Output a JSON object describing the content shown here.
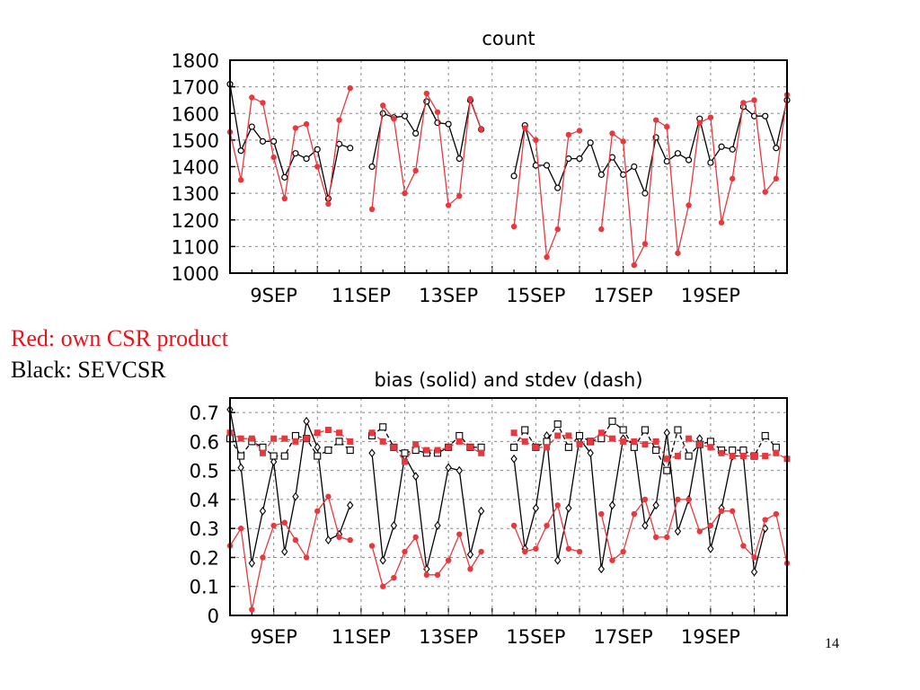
{
  "legend": {
    "red": "Red: own CSR product",
    "black": "Black: SEVCSR"
  },
  "slide_number": "14",
  "colors": {
    "red": "#e8383e",
    "black": "#000000"
  },
  "chart_data": [
    {
      "type": "line",
      "title": "count",
      "xlabel": "",
      "ylabel": "",
      "x_tick_labels": [
        "9SEP",
        "11SEP",
        "13SEP",
        "15SEP",
        "17SEP",
        "19SEP"
      ],
      "x_tick_days": [
        9,
        11,
        13,
        15,
        17,
        19
      ],
      "xlim": [
        8,
        20.75
      ],
      "ylim": [
        1000,
        1800
      ],
      "y_ticks": [
        1000,
        1100,
        1200,
        1300,
        1400,
        1500,
        1600,
        1700,
        1800
      ],
      "y_tick_labels": [
        "1000",
        "1100",
        "1200",
        "1300",
        "1400",
        "1500",
        "1600",
        "1700",
        "1800"
      ],
      "grid": "dashed",
      "series": [
        {
          "color": "black",
          "marker": "circle-open",
          "segments": [
            {
              "x": [
                8,
                8.25,
                8.5,
                8.75,
                9,
                9.25,
                9.5,
                9.75,
                10,
                10.25,
                10.5,
                10.75
              ],
              "y": [
                1710,
                1460,
                1550,
                1495,
                1495,
                1360,
                1450,
                1430,
                1465,
                1280,
                1485,
                1470
              ]
            },
            {
              "x": [
                11.25,
                11.5,
                11.75,
                12,
                12.25,
                12.5,
                12.75,
                13,
                13.25,
                13.5,
                13.75
              ],
              "y": [
                1400,
                1600,
                1585,
                1590,
                1525,
                1645,
                1565,
                1560,
                1430,
                1650,
                1540
              ]
            },
            {
              "x": [
                14.5,
                14.75,
                15,
                15.25,
                15.5,
                15.75,
                16,
                16.25,
                16.5,
                16.75,
                17,
                17.25,
                17.5,
                17.75,
                18,
                18.25,
                18.5,
                18.75,
                19,
                19.25,
                19.5,
                19.75,
                20,
                20.25,
                20.5,
                20.75
              ],
              "y": [
                1365,
                1555,
                1405,
                1405,
                1320,
                1430,
                1430,
                1490,
                1370,
                1435,
                1370,
                1400,
                1300,
                1510,
                1420,
                1450,
                1425,
                1580,
                1415,
                1475,
                1465,
                1625,
                1590,
                1590,
                1470,
                1650
              ]
            }
          ]
        },
        {
          "color": "red",
          "marker": "filled",
          "segments": [
            {
              "x": [
                8,
                8.25,
                8.5,
                8.75,
                9,
                9.25,
                9.5,
                9.75,
                10,
                10.25,
                10.5,
                10.75
              ],
              "y": [
                1530,
                1350,
                1660,
                1640,
                1435,
                1280,
                1545,
                1560,
                1400,
                1260,
                1575,
                1695
              ]
            },
            {
              "x": [
                11.25,
                11.5,
                11.75,
                12,
                12.25,
                12.5,
                12.75,
                13,
                13.25,
                13.5,
                13.75
              ],
              "y": [
                1240,
                1630,
                1580,
                1300,
                1385,
                1675,
                1605,
                1255,
                1290,
                1655,
                1540
              ]
            },
            {
              "x": [
                14.5,
                14.75,
                15,
                15.25,
                15.5,
                15.75,
                16,
                16.25,
                16.5,
                16.75,
                17,
                17.25,
                17.5,
                17.75,
                18,
                18.25,
                18.5,
                18.75,
                19,
                19.25,
                19.5,
                19.75,
                20,
                20.25,
                20.5,
                20.75
              ],
              "y": [
                1175,
                1545,
                1500,
                1060,
                1165,
                1520,
                1535,
                null,
                1165,
                1525,
                1495,
                1030,
                1110,
                1575,
                1550,
                1075,
                1255,
                1565,
                1585,
                1190,
                1355,
                1640,
                1650,
                1305,
                1355,
                1670
              ]
            }
          ]
        }
      ]
    },
    {
      "type": "line",
      "title": "bias (solid) and stdev (dash)",
      "xlabel": "",
      "ylabel": "",
      "x_tick_labels": [
        "9SEP",
        "11SEP",
        "13SEP",
        "15SEP",
        "17SEP",
        "19SEP"
      ],
      "x_tick_days": [
        9,
        11,
        13,
        15,
        17,
        19
      ],
      "xlim": [
        8,
        20.75
      ],
      "ylim": [
        0,
        0.75
      ],
      "y_ticks": [
        0,
        0.1,
        0.2,
        0.3,
        0.4,
        0.5,
        0.6,
        0.7
      ],
      "y_tick_labels": [
        "0",
        "0.1",
        "0.2",
        "0.3",
        "0.4",
        "0.5",
        "0.6",
        "0.7"
      ],
      "grid": "dashed",
      "series": [
        {
          "color": "black",
          "marker": "diamond-open",
          "line": "solid",
          "segments": [
            {
              "x": [
                8,
                8.25,
                8.5,
                8.75,
                9,
                9.25,
                9.5,
                9.75,
                10,
                10.25,
                10.5,
                10.75
              ],
              "y": [
                0.71,
                0.51,
                0.18,
                0.36,
                0.53,
                0.22,
                0.41,
                0.67,
                0.58,
                0.26,
                0.28,
                0.38
              ]
            },
            {
              "x": [
                11.25,
                11.5,
                11.75,
                12,
                12.25,
                12.5,
                12.75,
                13,
                13.25,
                13.5,
                13.75
              ],
              "y": [
                0.56,
                0.19,
                0.31,
                0.55,
                0.48,
                0.16,
                0.31,
                0.51,
                0.5,
                0.21,
                0.36
              ]
            },
            {
              "x": [
                14.5,
                14.75,
                15,
                15.25,
                15.5,
                15.75,
                16,
                16.25,
                16.5,
                16.75,
                17,
                17.25,
                17.5,
                17.75,
                18,
                18.25,
                18.5,
                18.75,
                19,
                19.25,
                19.5,
                19.75,
                20,
                20.25,
                20.5,
                20.75
              ],
              "y": [
                0.54,
                0.23,
                0.37,
                0.62,
                0.19,
                0.37,
                0.61,
                0.56,
                0.16,
                0.38,
                0.61,
                0.59,
                0.31,
                0.38,
                0.63,
                0.29,
                0.4,
                0.61,
                0.23,
                0.37,
                0.55,
                0.55,
                0.15,
                0.3,
                null,
                null
              ]
            }
          ]
        },
        {
          "color": "black",
          "marker": "square-open",
          "line": "dash",
          "segments": [
            {
              "x": [
                8,
                8.25,
                8.5,
                8.75,
                9,
                9.25,
                9.5,
                9.75,
                10,
                10.25,
                10.5,
                10.75
              ],
              "y": [
                0.61,
                0.55,
                0.6,
                0.58,
                0.55,
                0.55,
                0.62,
                0.61,
                0.55,
                0.57,
                0.6,
                0.57
              ]
            },
            {
              "x": [
                11.25,
                11.5,
                11.75,
                12,
                12.25,
                12.5,
                12.75,
                13,
                13.25,
                13.5,
                13.75
              ],
              "y": [
                0.62,
                0.65,
                0.58,
                0.56,
                0.57,
                0.56,
                0.56,
                0.58,
                0.62,
                0.58,
                0.58
              ]
            },
            {
              "x": [
                14.5,
                14.75,
                15,
                15.25,
                15.5,
                15.75,
                16,
                16.25,
                16.5,
                16.75,
                17,
                17.25,
                17.5,
                17.75,
                18,
                18.25,
                18.5,
                18.75,
                19,
                19.25,
                19.5,
                19.75,
                20,
                20.25,
                20.5,
                20.75
              ],
              "y": [
                0.58,
                0.64,
                0.58,
                0.6,
                0.66,
                0.58,
                0.62,
                0.6,
                0.61,
                0.67,
                0.64,
                0.58,
                0.64,
                0.57,
                0.5,
                0.64,
                0.55,
                0.59,
                0.6,
                0.57,
                0.57,
                0.57,
                0.55,
                0.62,
                0.58,
                null
              ]
            }
          ]
        },
        {
          "color": "red",
          "marker": "filled",
          "line": "solid",
          "segments": [
            {
              "x": [
                8,
                8.25,
                8.5,
                8.75,
                9,
                9.25,
                9.5,
                9.75,
                10,
                10.25,
                10.5,
                10.75
              ],
              "y": [
                0.24,
                0.3,
                0.02,
                0.2,
                0.31,
                0.32,
                0.26,
                0.2,
                0.36,
                0.41,
                0.27,
                0.26
              ]
            },
            {
              "x": [
                11.25,
                11.5,
                11.75,
                12,
                12.25,
                12.5,
                12.75,
                13,
                13.25,
                13.5,
                13.75
              ],
              "y": [
                0.24,
                0.1,
                0.13,
                0.22,
                0.27,
                0.14,
                0.14,
                0.19,
                0.28,
                0.16,
                0.22
              ]
            },
            {
              "x": [
                14.5,
                14.75,
                15,
                15.25,
                15.5,
                15.75,
                16,
                16.25,
                16.5,
                16.75,
                17,
                17.25,
                17.5,
                17.75,
                18,
                18.25,
                18.5,
                18.75,
                19,
                19.25,
                19.5,
                19.75,
                20,
                20.25,
                20.5,
                20.75
              ],
              "y": [
                0.31,
                0.22,
                0.23,
                0.31,
                0.38,
                0.23,
                0.22,
                null,
                0.35,
                0.19,
                0.22,
                0.35,
                0.4,
                0.27,
                0.27,
                0.4,
                0.4,
                0.29,
                0.31,
                0.36,
                0.36,
                0.24,
                0.2,
                0.33,
                0.35,
                0.18
              ]
            }
          ]
        },
        {
          "color": "red",
          "marker": "filled-square",
          "line": "dash",
          "segments": [
            {
              "x": [
                8,
                8.25,
                8.5,
                8.75,
                9,
                9.25,
                9.5,
                9.75,
                10,
                10.25,
                10.5,
                10.75
              ],
              "y": [
                0.63,
                0.61,
                0.61,
                0.56,
                0.61,
                0.61,
                0.6,
                0.61,
                0.63,
                0.64,
                0.63,
                0.6
              ]
            },
            {
              "x": [
                11.25,
                11.5,
                11.75,
                12,
                12.25,
                12.5,
                12.75,
                13,
                13.25,
                13.5,
                13.75
              ],
              "y": [
                0.63,
                0.6,
                0.58,
                0.53,
                0.59,
                0.57,
                0.57,
                0.58,
                0.6,
                0.58,
                0.56
              ]
            },
            {
              "x": [
                14.5,
                14.75,
                15,
                15.25,
                15.5,
                15.75,
                16,
                16.25,
                16.5,
                16.75,
                17,
                17.25,
                17.5,
                17.75,
                18,
                18.25,
                18.5,
                18.75,
                19,
                19.25,
                19.5,
                19.75,
                20,
                20.25,
                20.5,
                20.75
              ],
              "y": [
                0.63,
                0.6,
                0.58,
                0.58,
                0.62,
                0.62,
                0.59,
                0.6,
                0.63,
                0.61,
                0.6,
                0.6,
                0.59,
                0.6,
                0.54,
                0.55,
                0.61,
                0.59,
                0.58,
                0.56,
                0.55,
                0.55,
                0.55,
                0.55,
                0.56,
                0.54
              ]
            }
          ]
        }
      ]
    }
  ]
}
